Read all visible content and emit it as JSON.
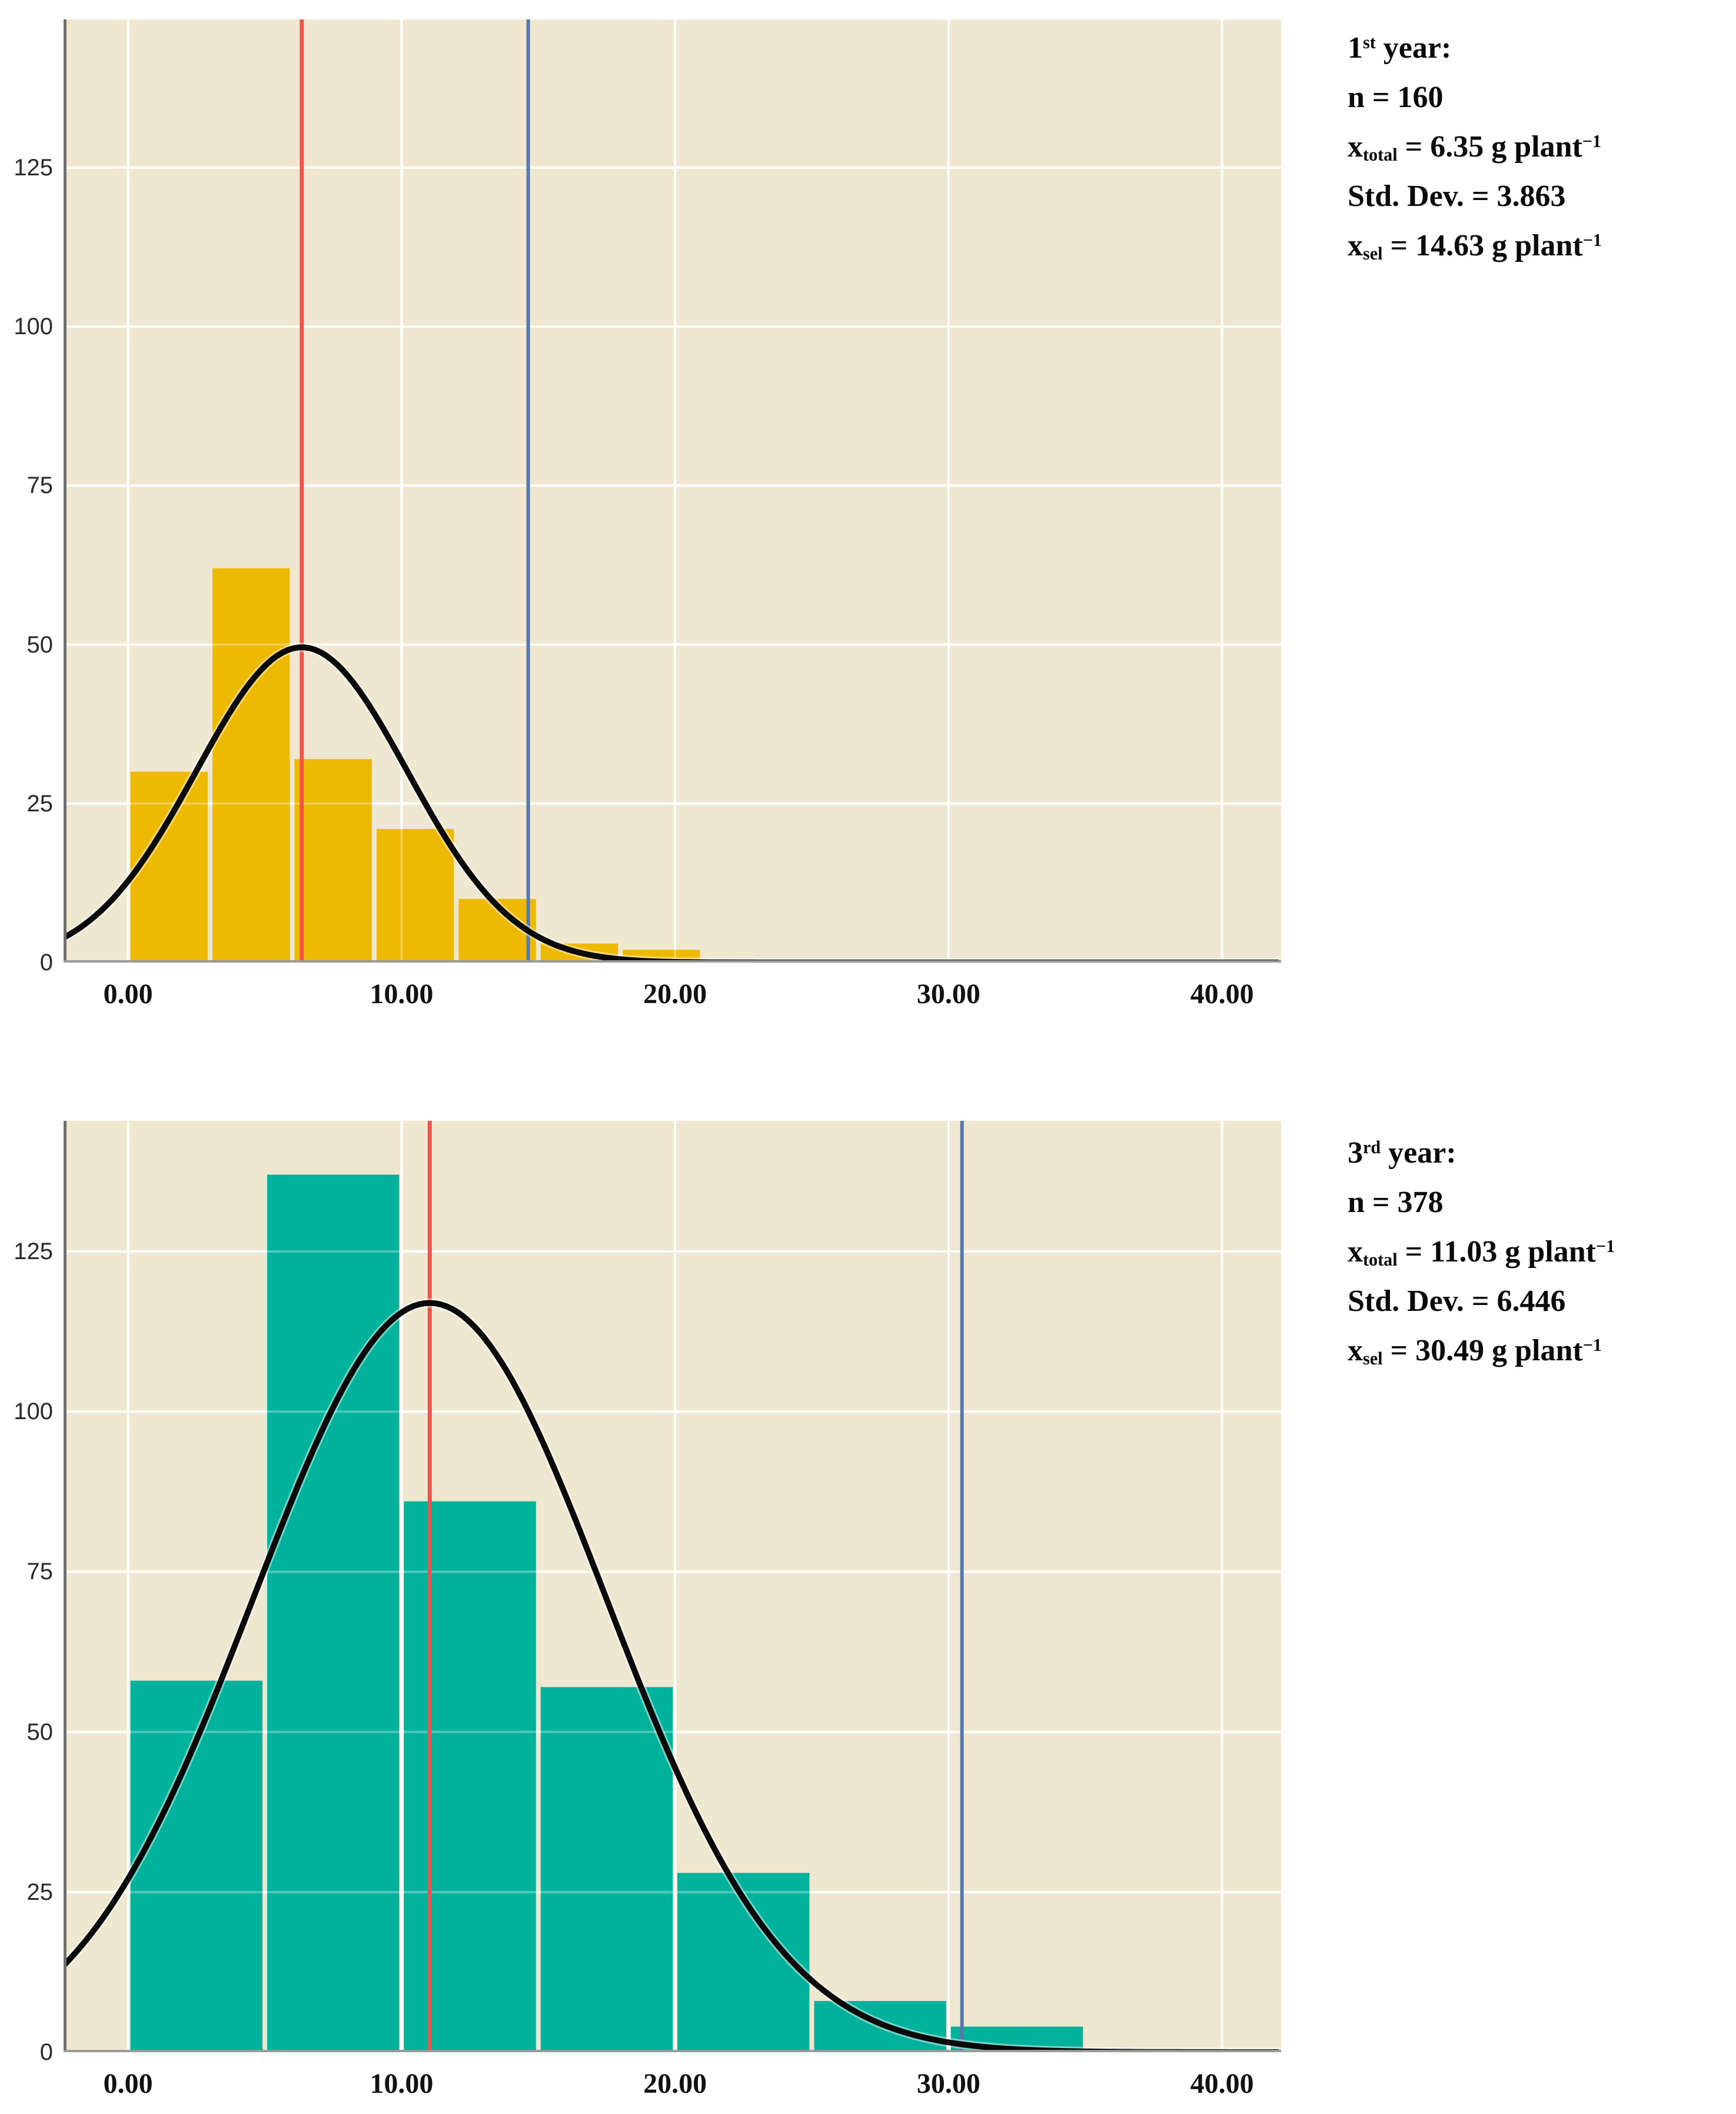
{
  "figure": {
    "background": "#FFFFFF"
  },
  "style": {
    "plot_bg": "#F0E7D1",
    "grid_color": "#FFFFFF",
    "grid_overlay_opacity": 0.3,
    "left_axis_color": "#6F6F6F",
    "bottom_axis_color": "#9A9A9A",
    "curve_color": "#0A0A0A",
    "curve_halo_color": "#FFFFFF",
    "x_tick_color": "#111111",
    "y_tick_color": "#2A2A2A",
    "annotation_color": "#0A0A0A"
  },
  "chart_data": [
    {
      "type": "bar",
      "subtype": "histogram-with-normal-curve",
      "year": "1st year",
      "n": 160,
      "mean_total": 6.35,
      "std_dev": 3.863,
      "mean_selected": 14.63,
      "unit": "g plant-1",
      "bin_start": 0,
      "bin_width": 3,
      "bin_edges": [
        0,
        3,
        6,
        9,
        12,
        15,
        18,
        21
      ],
      "counts": [
        30,
        62,
        32,
        21,
        10,
        3,
        2
      ],
      "bar_color": "#EEB902",
      "mean_line": {
        "value": 6.35,
        "color": "#F4514D",
        "width": 7
      },
      "selection_line": {
        "value": 14.63,
        "color": "#5878A8",
        "width": 6
      },
      "normal_curve": {
        "mean": 6.35,
        "sd": 3.863,
        "scale": 480,
        "peak": 49.6
      },
      "x_ticks": [
        {
          "value": 0,
          "label": "0.00"
        },
        {
          "value": 10,
          "label": "10.00"
        },
        {
          "value": 20,
          "label": "20.00"
        },
        {
          "value": 30,
          "label": "30.00"
        },
        {
          "value": 40,
          "label": "40.00"
        }
      ],
      "y_ticks": [
        {
          "value": 0,
          "label": "0"
        },
        {
          "value": 25,
          "label": "25"
        },
        {
          "value": 50,
          "label": "50"
        },
        {
          "value": 75,
          "label": "75"
        },
        {
          "value": 100,
          "label": "100"
        },
        {
          "value": 125,
          "label": "125"
        }
      ],
      "x_range": [
        -2.36,
        42.16
      ],
      "y_range": [
        0,
        148.3
      ],
      "grid": true,
      "legend": false,
      "xlabel": "",
      "ylabel": ""
    },
    {
      "type": "bar",
      "subtype": "histogram-with-normal-curve",
      "year": "3rd year",
      "n": 378,
      "mean_total": 11.03,
      "std_dev": 6.446,
      "mean_selected": 30.49,
      "unit": "g plant-1",
      "bin_start": 0,
      "bin_width": 5,
      "bin_edges": [
        0,
        5,
        10,
        15,
        20,
        25,
        30,
        35
      ],
      "counts": [
        58,
        137,
        86,
        57,
        28,
        8,
        4
      ],
      "bar_color": "#00B29C",
      "mean_line": {
        "value": 11.03,
        "color": "#F4514D",
        "width": 7
      },
      "selection_line": {
        "value": 30.49,
        "color": "#5878A8",
        "width": 6
      },
      "normal_curve": {
        "mean": 11.03,
        "sd": 6.446,
        "scale": 1890,
        "peak": 117.0
      },
      "x_ticks": [
        {
          "value": 0,
          "label": "0.00"
        },
        {
          "value": 10,
          "label": "10.00"
        },
        {
          "value": 20,
          "label": "20.00"
        },
        {
          "value": 30,
          "label": "30.00"
        },
        {
          "value": 40,
          "label": "40.00"
        }
      ],
      "y_ticks": [
        {
          "value": 0,
          "label": "0"
        },
        {
          "value": 25,
          "label": "25"
        },
        {
          "value": 50,
          "label": "50"
        },
        {
          "value": 75,
          "label": "75"
        },
        {
          "value": 100,
          "label": "100"
        },
        {
          "value": 125,
          "label": "125"
        }
      ],
      "x_range": [
        -2.36,
        42.16
      ],
      "y_range": [
        0,
        145.4
      ],
      "grid": true,
      "legend": false,
      "xlabel": "",
      "ylabel": ""
    }
  ],
  "annotations": [
    {
      "title_num": "1",
      "title_ord": "st",
      "title_rest": " year:",
      "n_line": "n = 160",
      "x_var": "x",
      "x_sub": "total",
      "x_rest": " = 6.35 g plant",
      "x_exp": "−1",
      "std_line": "Std. Dev. = 3.863",
      "s_var": "x",
      "s_sub": "sel",
      "s_rest": " = 14.63 g plant",
      "s_exp": "−1"
    },
    {
      "title_num": "3",
      "title_ord": "rd",
      "title_rest": " year:",
      "n_line": "n = 378",
      "x_var": "x",
      "x_sub": "total",
      "x_rest": " = 11.03 g plant",
      "x_exp": "−1",
      "std_line": "Std. Dev. = 6.446",
      "s_var": "x",
      "s_sub": "sel",
      "s_rest": " = 30.49 g plant",
      "s_exp": "−1"
    }
  ]
}
